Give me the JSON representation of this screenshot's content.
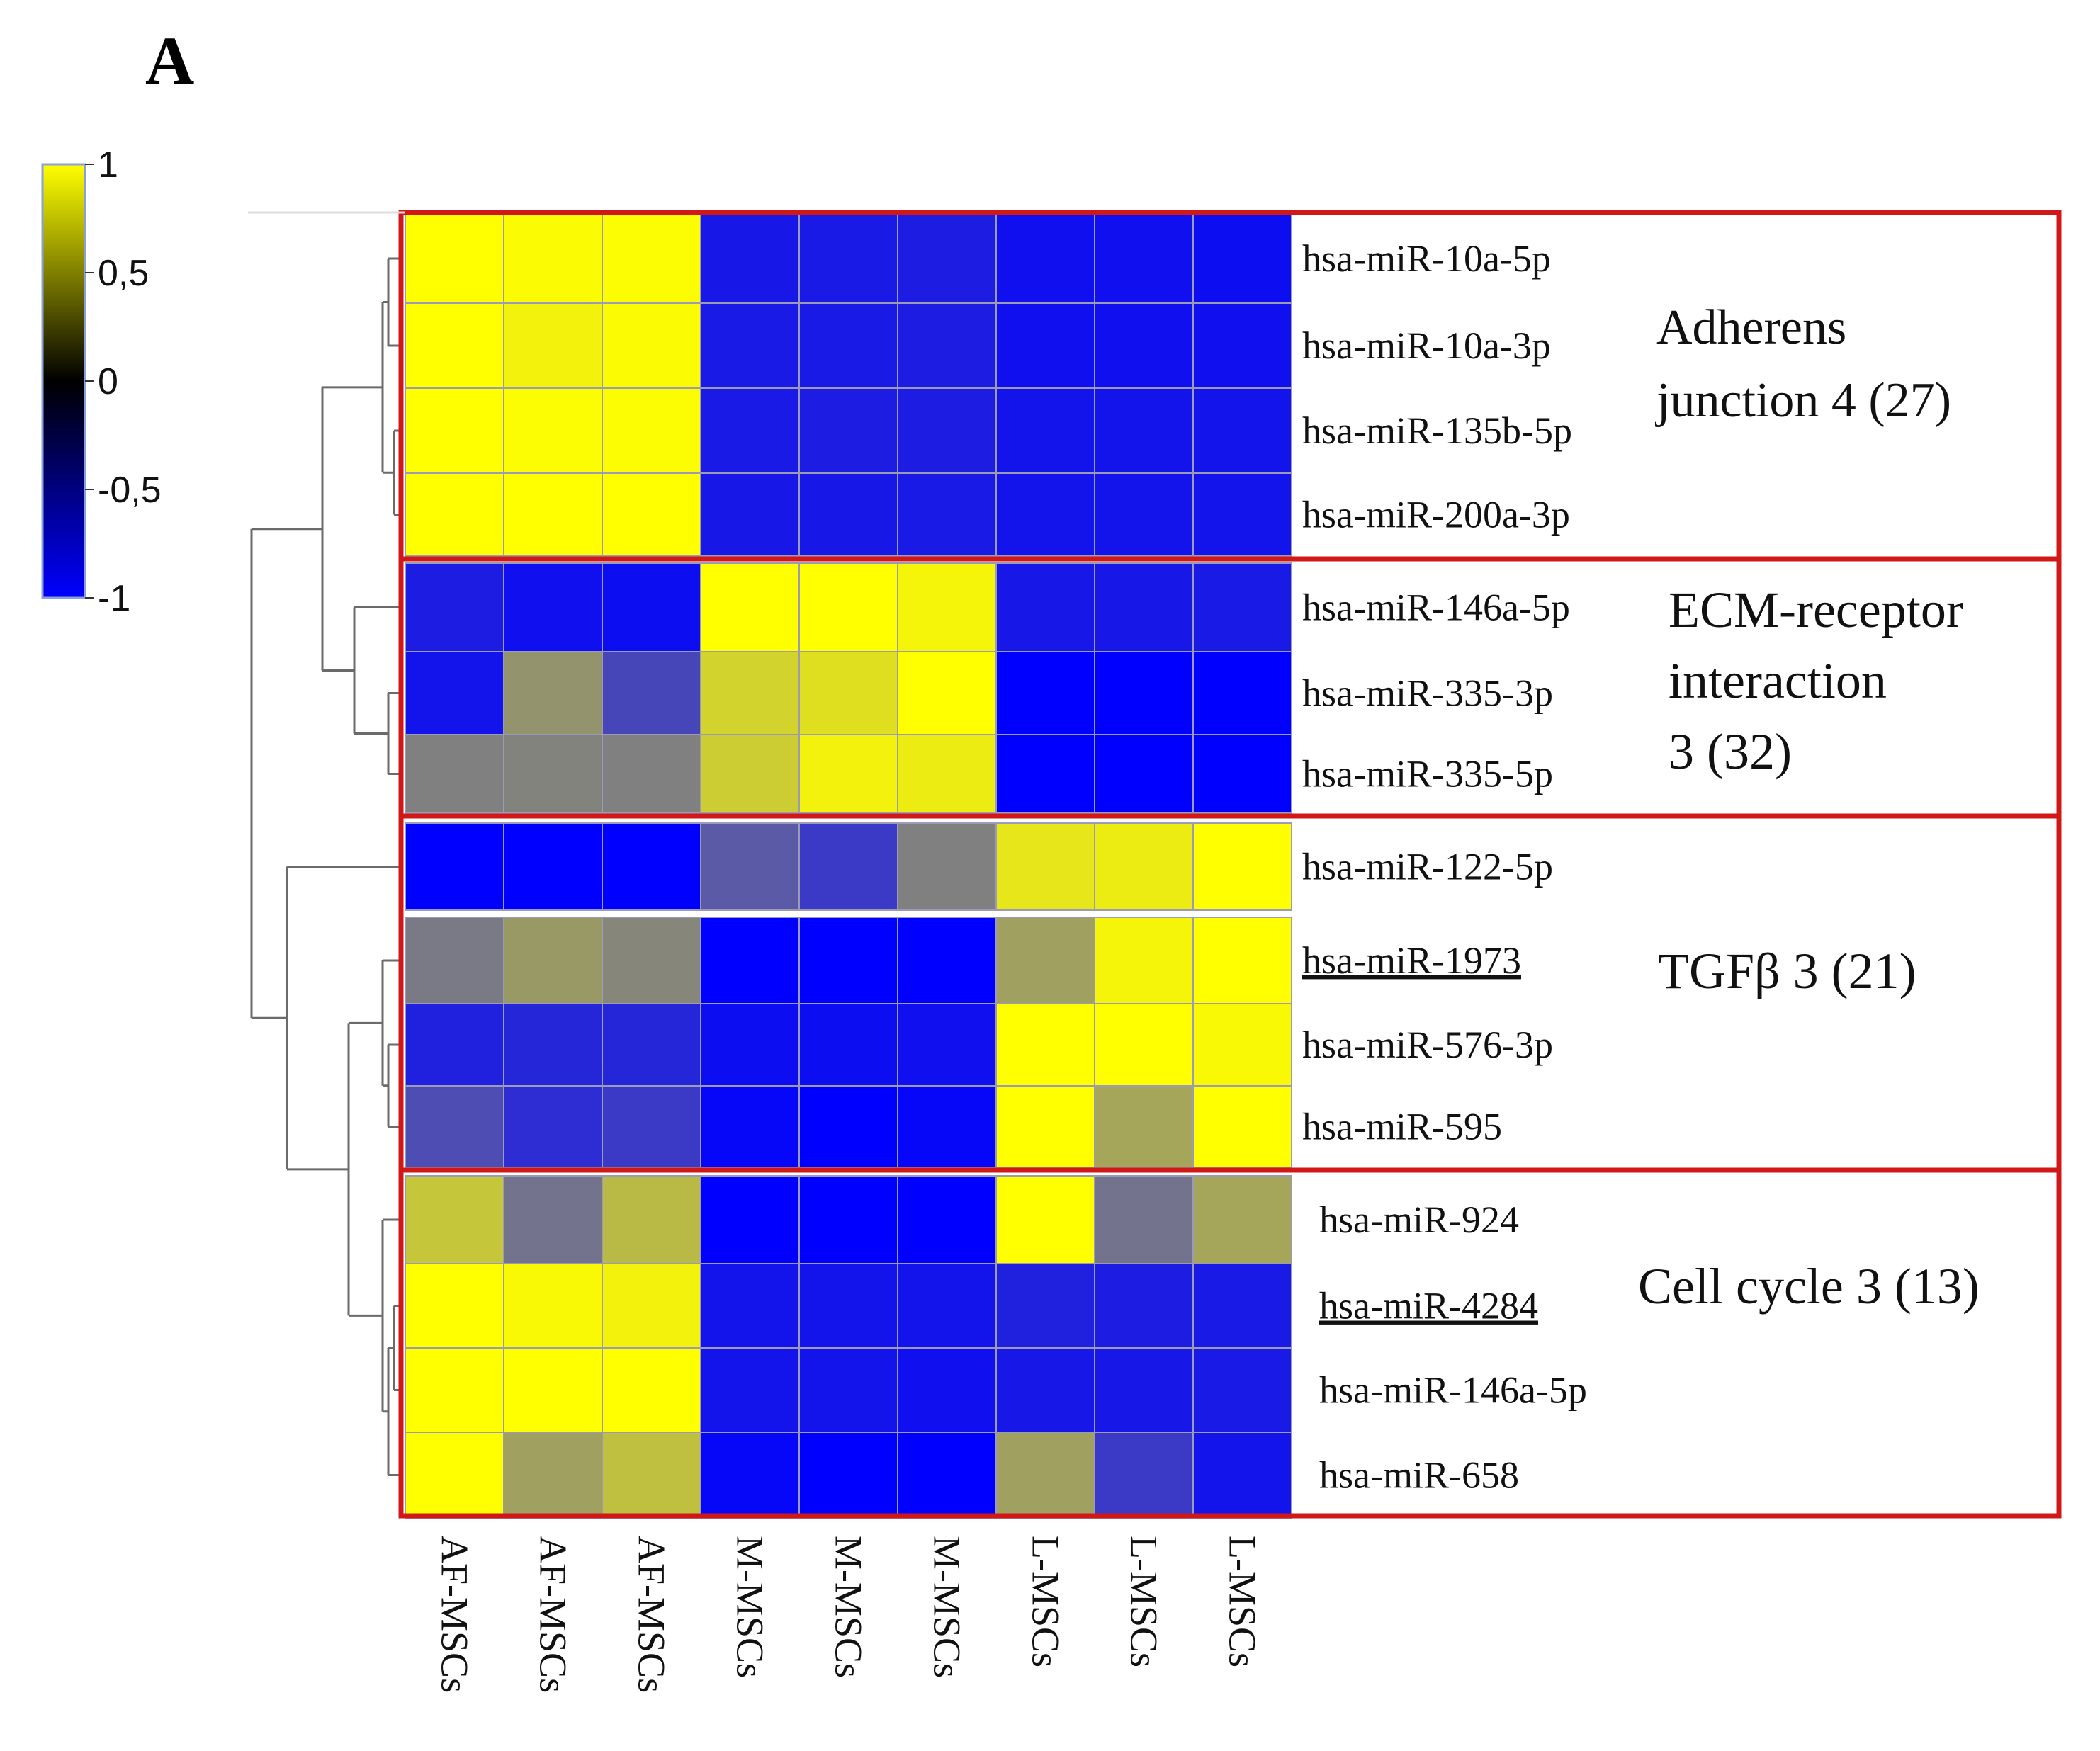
{
  "panel_label": "A",
  "chart_data": {
    "type": "heatmap",
    "colorscale": {
      "colors": {
        "low": "#0000ff",
        "mid": "#000000",
        "high": "#ffff00"
      },
      "range": [
        -1,
        1
      ],
      "ticks": [
        {
          "value": 1,
          "label": "1"
        },
        {
          "value": 0.5,
          "label": "0,5"
        },
        {
          "value": 0,
          "label": "0"
        },
        {
          "value": -0.5,
          "label": "-0,5"
        },
        {
          "value": -1,
          "label": "-1"
        }
      ]
    },
    "columns": [
      "AF-MSCs",
      "AF-MSCs",
      "AF-MSCs",
      "M-MSCs",
      "M-MSCs",
      "M-MSCs",
      "L-MSCs",
      "L-MSCs",
      "L-MSCs"
    ],
    "rows": [
      {
        "label": "hsa-miR-10a-5p",
        "underline": false,
        "values": [
          1,
          0.97,
          0.98,
          -0.82,
          -0.8,
          -0.78,
          -0.88,
          -0.88,
          -0.9
        ]
      },
      {
        "label": "hsa-miR-10a-3p",
        "underline": false,
        "values": [
          1,
          0.9,
          0.97,
          -0.8,
          -0.8,
          -0.78,
          -0.88,
          -0.88,
          -0.88
        ]
      },
      {
        "label": "hsa-miR-135b-5p",
        "underline": false,
        "values": [
          1,
          0.98,
          0.98,
          -0.8,
          -0.78,
          -0.78,
          -0.85,
          -0.85,
          -0.85
        ]
      },
      {
        "label": "hsa-miR-200a-3p",
        "underline": false,
        "values": [
          1,
          1,
          1,
          -0.82,
          -0.82,
          -0.8,
          -0.85,
          -0.85,
          -0.85
        ]
      },
      {
        "label": "hsa-miR-146a-5p",
        "underline": false,
        "values": [
          -0.78,
          -0.88,
          -0.9,
          1,
          1,
          0.92,
          -0.82,
          -0.82,
          -0.8
        ]
      },
      {
        "label": "hsa-miR-335-3p",
        "underline": false,
        "values": [
          -0.85,
          0.15,
          -0.45,
          0.65,
          0.75,
          1,
          -1,
          -1,
          -1
        ]
      },
      {
        "label": "hsa-miR-335-5p",
        "underline": false,
        "values": [
          0.0,
          0.02,
          0.0,
          0.6,
          0.9,
          0.85,
          -1,
          -1,
          -1
        ]
      },
      {
        "label": "hsa-miR-122-5p",
        "underline": false,
        "values": [
          -1,
          -1,
          -1,
          -0.3,
          -0.55,
          0.0,
          0.8,
          0.85,
          1
        ]
      },
      {
        "label": "hsa-miR-1973",
        "underline": true,
        "values": [
          -0.05,
          0.2,
          0.05,
          -1,
          -1,
          -1,
          0.25,
          0.92,
          1
        ]
      },
      {
        "label": "hsa-miR-576-3p",
        "underline": false,
        "values": [
          -0.75,
          -0.7,
          -0.7,
          -0.9,
          -0.9,
          -0.88,
          1,
          1,
          0.95
        ]
      },
      {
        "label": "hsa-miR-595",
        "underline": false,
        "values": [
          -0.4,
          -0.65,
          -0.55,
          -0.95,
          -1,
          -0.95,
          1,
          0.3,
          1
        ]
      },
      {
        "label": "hsa-miR-924",
        "underline": false,
        "values": [
          0.55,
          -0.1,
          0.45,
          -1,
          -1,
          -1,
          1,
          -0.1,
          0.3
        ]
      },
      {
        "label": "hsa-miR-4284",
        "underline": true,
        "values": [
          1,
          0.95,
          0.9,
          -0.85,
          -0.85,
          -0.85,
          -0.75,
          -0.78,
          -0.8
        ]
      },
      {
        "label": "hsa-miR-146a-5p",
        "underline": false,
        "values": [
          1,
          1,
          1,
          -0.85,
          -0.85,
          -0.88,
          -0.82,
          -0.82,
          -0.8
        ]
      },
      {
        "label": "hsa-miR-658",
        "underline": false,
        "values": [
          1,
          0.25,
          0.5,
          -0.95,
          -1,
          -1,
          0.25,
          -0.55,
          -0.85
        ]
      }
    ],
    "clusters": [
      {
        "name": "adherens",
        "lines": [
          "Adherens",
          "junction 4 (27)"
        ],
        "rows": [
          0,
          3
        ]
      },
      {
        "name": "ecm",
        "lines": [
          "ECM-receptor",
          "interaction",
          "3 (32)"
        ],
        "rows": [
          4,
          6
        ]
      },
      {
        "name": "tgfb",
        "lines": [
          "TGFβ 3 (21)"
        ],
        "rows": [
          7,
          10
        ]
      },
      {
        "name": "cell-cycle",
        "lines": [
          "Cell cycle 3 (13)"
        ],
        "rows": [
          11,
          14
        ]
      }
    ]
  }
}
